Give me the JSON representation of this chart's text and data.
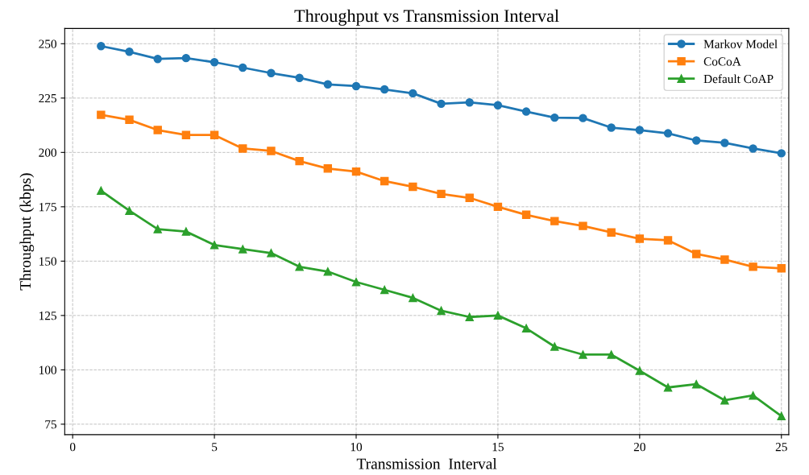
{
  "chart_data": {
    "type": "line",
    "title": "Throughput vs Transmission Interval",
    "xlabel": "Transmission  Interval",
    "ylabel": "Throughput (kbps)",
    "x": [
      1,
      2,
      3,
      4,
      5,
      6,
      7,
      8,
      9,
      10,
      11,
      12,
      13,
      14,
      15,
      16,
      17,
      18,
      19,
      20,
      21,
      22,
      23,
      24,
      25
    ],
    "series": [
      {
        "name": "Markov Model",
        "color": "#1f77b4",
        "marker": "circle",
        "values": [
          248.9,
          246.3,
          243,
          243.4,
          241.5,
          239,
          236.5,
          234.3,
          231.3,
          230.5,
          229,
          227.2,
          222.4,
          223,
          221.7,
          218.8,
          216,
          215.8,
          211.4,
          210.3,
          208.8,
          205.5,
          204.4,
          201.8,
          199.6
        ]
      },
      {
        "name": "CoCoA",
        "color": "#ff7f0e",
        "marker": "square",
        "values": [
          217.3,
          215,
          210.3,
          208,
          208,
          201.8,
          200.7,
          196,
          192.6,
          191.2,
          186.8,
          184.2,
          180.9,
          179.1,
          175,
          171.3,
          168.4,
          166.2,
          163.2,
          160.3,
          159.6,
          153.3,
          150.7,
          147.4,
          146.7
        ]
      },
      {
        "name": "Default CoAP",
        "color": "#2ca02c",
        "marker": "triangle",
        "values": [
          182.4,
          173.2,
          164.7,
          163.6,
          157.4,
          155.5,
          153.7,
          147.4,
          145.2,
          140.4,
          136.8,
          133.1,
          127.2,
          124.3,
          125,
          119.1,
          110.7,
          107,
          107,
          99.6,
          91.9,
          93.4,
          86,
          88.2,
          78.7
        ]
      }
    ],
    "xlim": [
      -0.28,
      25.26
    ],
    "ylim": [
      70.2,
      257
    ],
    "xticks": [
      0,
      5,
      10,
      15,
      20,
      25
    ],
    "yticks": [
      75,
      100,
      125,
      150,
      175,
      200,
      225,
      250
    ],
    "grid": true,
    "legend": "top right",
    "line_style": "solid"
  }
}
